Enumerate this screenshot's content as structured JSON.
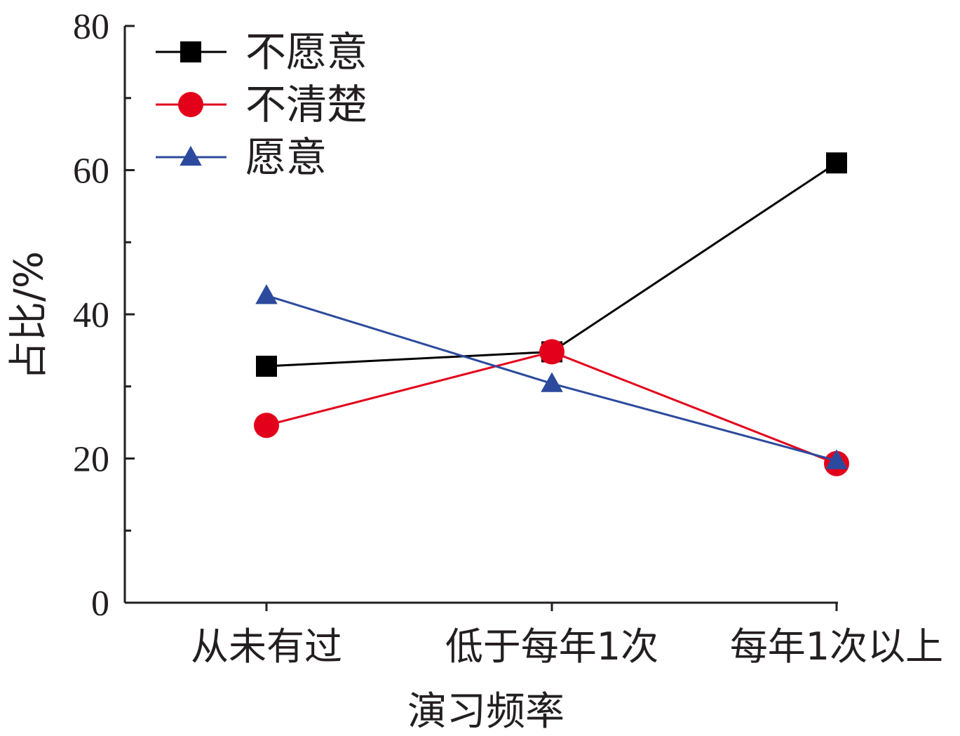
{
  "chart_data": {
    "type": "line",
    "title": "",
    "xlabel": "演习频率",
    "ylabel": "占比/%",
    "categories": [
      "从未有过",
      "低于每年1次",
      "每年1次以上"
    ],
    "ylim": [
      0,
      80
    ],
    "yticks": [
      "0",
      "20",
      "40",
      "60",
      "80"
    ],
    "grid": false,
    "legend_position": "top-left",
    "series": [
      {
        "name": "不愿意",
        "values": [
          32.8,
          34.8,
          61.0
        ],
        "color": "#000000",
        "marker": "square"
      },
      {
        "name": "不清楚",
        "values": [
          24.6,
          34.8,
          19.3
        ],
        "color": "#e3001b",
        "marker": "circle"
      },
      {
        "name": "愿意",
        "values": [
          42.6,
          30.4,
          19.7
        ],
        "color": "#2c4a9d",
        "marker": "triangle"
      }
    ]
  }
}
